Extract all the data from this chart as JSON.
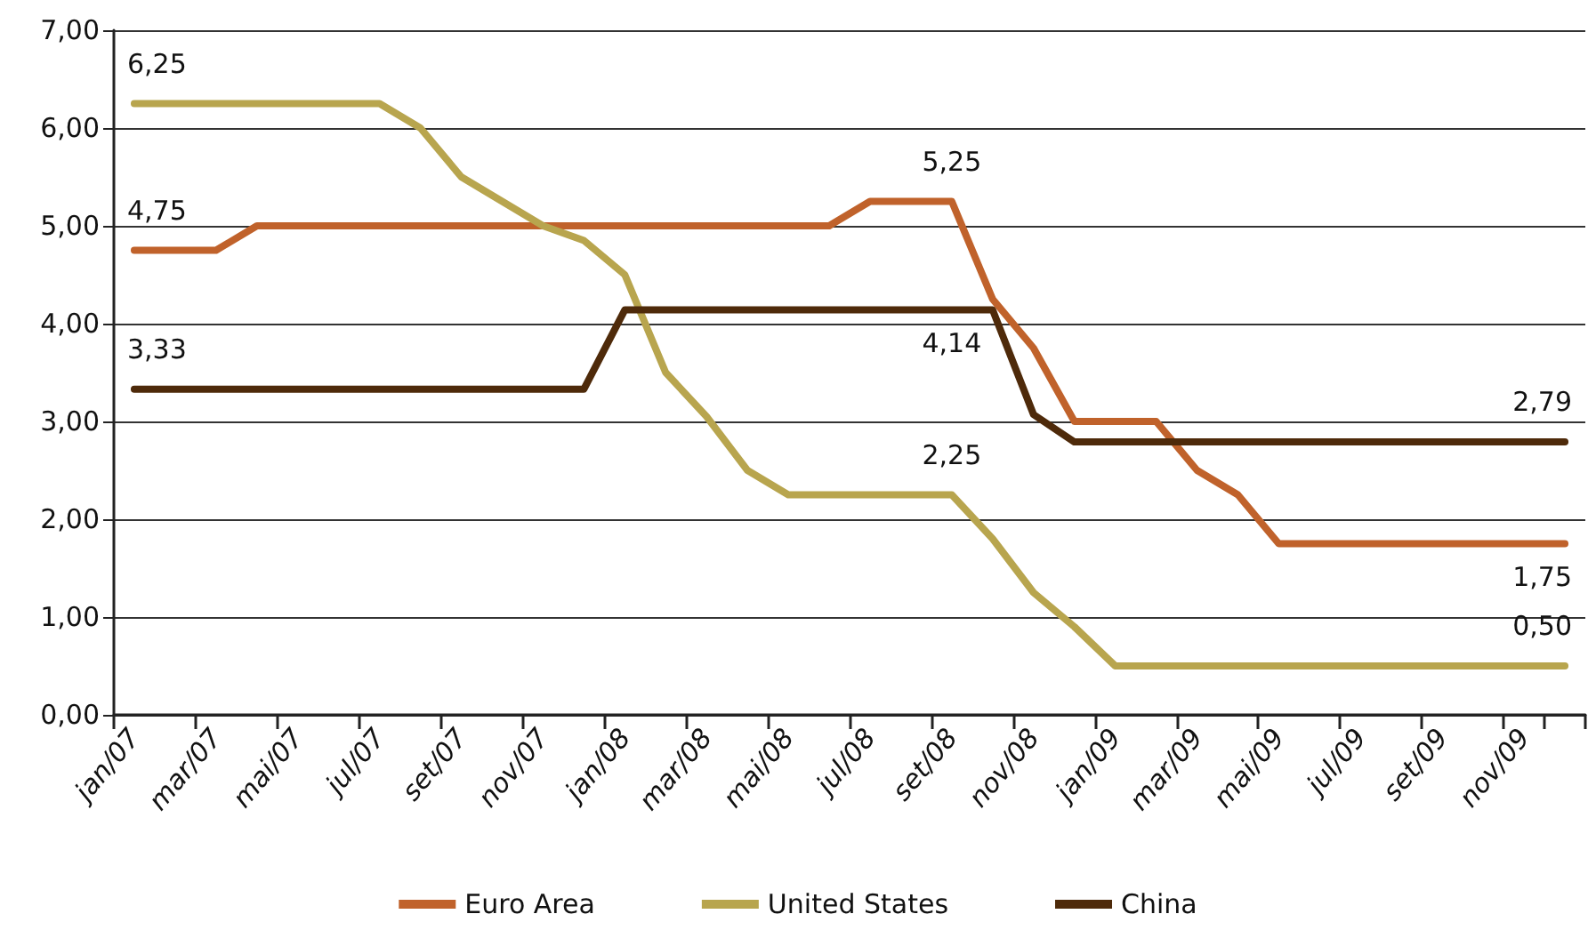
{
  "chart_data": {
    "type": "line",
    "categories": [
      "jan/07",
      null,
      "mar/07",
      null,
      "mai/07",
      null,
      "jul/07",
      null,
      "set/07",
      null,
      "nov/07",
      null,
      "jan/08",
      null,
      "mar/08",
      null,
      "mai/08",
      null,
      "jul/08",
      null,
      "set/08",
      null,
      "nov/08",
      null,
      "jan/09",
      null,
      "mar/09",
      null,
      "mai/09",
      null,
      "jul/09",
      null,
      "set/09",
      null,
      "nov/09",
      null
    ],
    "series": [
      {
        "name": "Euro Area",
        "color": "#c0622b",
        "values": [
          4.75,
          4.75,
          4.75,
          5.0,
          5.0,
          5.0,
          5.0,
          5.0,
          5.0,
          5.0,
          5.0,
          5.0,
          5.0,
          5.0,
          5.0,
          5.0,
          5.0,
          5.0,
          5.25,
          5.25,
          5.25,
          4.25,
          3.75,
          3.0,
          3.0,
          3.0,
          2.5,
          2.25,
          1.75,
          1.75,
          1.75,
          1.75,
          1.75,
          1.75,
          1.75,
          1.75
        ],
        "value_labels": [
          "4,75",
          null,
          null,
          null,
          null,
          null,
          null,
          null,
          null,
          null,
          null,
          null,
          null,
          null,
          null,
          null,
          null,
          null,
          null,
          null,
          "5,25",
          null,
          null,
          null,
          null,
          null,
          null,
          null,
          null,
          null,
          null,
          null,
          null,
          null,
          null,
          "1,75"
        ]
      },
      {
        "name": "United States",
        "color": "#b8a54e",
        "values": [
          6.25,
          6.25,
          6.25,
          6.25,
          6.25,
          6.25,
          6.25,
          6.0,
          5.5,
          5.25,
          5.0,
          4.85,
          4.5,
          3.5,
          3.05,
          2.5,
          2.25,
          2.25,
          2.25,
          2.25,
          2.25,
          1.8,
          1.25,
          0.9,
          0.5,
          0.5,
          0.5,
          0.5,
          0.5,
          0.5,
          0.5,
          0.5,
          0.5,
          0.5,
          0.5,
          0.5
        ],
        "value_labels": [
          "6,25",
          null,
          null,
          null,
          null,
          null,
          null,
          null,
          null,
          null,
          null,
          null,
          null,
          null,
          null,
          null,
          null,
          null,
          null,
          null,
          "2,25",
          null,
          null,
          null,
          null,
          null,
          null,
          null,
          null,
          null,
          null,
          null,
          null,
          null,
          null,
          "0,50"
        ]
      },
      {
        "name": "China",
        "color": "#4e2a0a",
        "values": [
          3.33,
          3.33,
          3.33,
          3.33,
          3.33,
          3.33,
          3.33,
          3.33,
          3.33,
          3.33,
          3.33,
          3.33,
          4.14,
          4.14,
          4.14,
          4.14,
          4.14,
          4.14,
          4.14,
          4.14,
          4.14,
          4.14,
          3.07,
          2.79,
          2.79,
          2.79,
          2.79,
          2.79,
          2.79,
          2.79,
          2.79,
          2.79,
          2.79,
          2.79,
          2.79,
          2.79
        ],
        "value_labels": [
          "3,33",
          null,
          null,
          null,
          null,
          null,
          null,
          null,
          null,
          null,
          null,
          null,
          null,
          null,
          null,
          null,
          null,
          null,
          null,
          null,
          "4,14",
          null,
          null,
          null,
          null,
          null,
          null,
          null,
          null,
          null,
          null,
          null,
          null,
          null,
          null,
          "2,79"
        ]
      }
    ],
    "ylim": [
      0,
      7
    ],
    "yticks": [
      {
        "value": 0,
        "label": "0,00"
      },
      {
        "value": 1,
        "label": "1,00"
      },
      {
        "value": 2,
        "label": "2,00"
      },
      {
        "value": 3,
        "label": "3,00"
      },
      {
        "value": 4,
        "label": "4,00"
      },
      {
        "value": 5,
        "label": "5,00"
      },
      {
        "value": 6,
        "label": "6,00"
      },
      {
        "value": 7,
        "label": "7,00"
      }
    ],
    "grid": "y",
    "legend": "bottom",
    "marker": "none",
    "line_style": "solid"
  }
}
